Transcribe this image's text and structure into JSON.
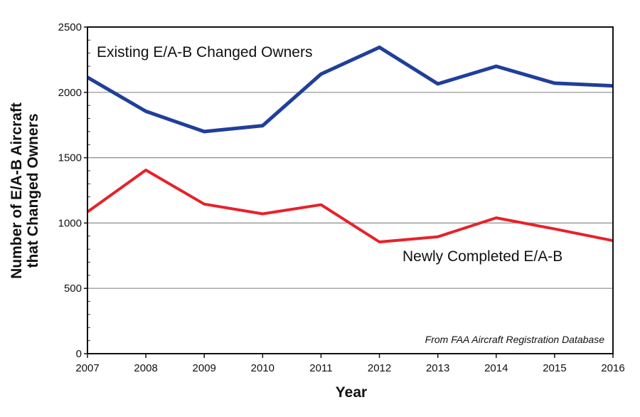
{
  "chart_data": {
    "type": "line",
    "xlabel": "Year",
    "ylabel_line1": "Number of E/A-B Aircraft",
    "ylabel_line2": "that Changed Owners",
    "x": [
      2007,
      2008,
      2009,
      2010,
      2011,
      2012,
      2013,
      2014,
      2015,
      2016
    ],
    "x_tick_labels": [
      "2007",
      "2008",
      "2009",
      "2010",
      "2011",
      "2012",
      "2013",
      "2014",
      "2015",
      "2016"
    ],
    "ylim": [
      0,
      2500
    ],
    "y_ticks": [
      0,
      500,
      1000,
      1500,
      2000,
      2500
    ],
    "y_tick_labels": [
      "0",
      "500",
      "1000",
      "1500",
      "2000",
      "2500"
    ],
    "grid": true,
    "series": [
      {
        "name": "Existing E/A-B Changed Owners",
        "color": "#1f3f9a",
        "values": [
          2115,
          1855,
          1700,
          1745,
          2140,
          2345,
          2065,
          2200,
          2070,
          2050
        ]
      },
      {
        "name": "Newly Completed E/A-B",
        "color": "#e8212a",
        "values": [
          1085,
          1405,
          1145,
          1070,
          1140,
          855,
          895,
          1040,
          955,
          865
        ]
      }
    ],
    "annotation": "From FAA Aircraft Registration Database"
  }
}
